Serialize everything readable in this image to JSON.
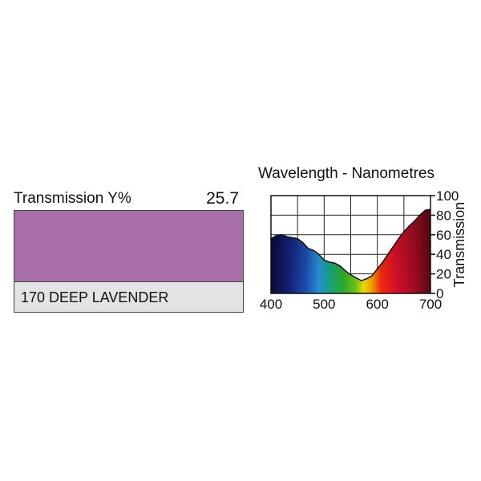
{
  "filter": {
    "transmission_label": "Transmission Y%",
    "transmission_value": "25.7",
    "name": "170 DEEP LAVENDER",
    "swatch_color": "#a86ea8"
  },
  "chart_data": {
    "type": "area",
    "title": "Wavelength - Nanometres",
    "xlabel": "",
    "ylabel": "Transmission",
    "xlim": [
      400,
      700
    ],
    "ylim": [
      0,
      100
    ],
    "x_ticks": [
      "400",
      "500",
      "600",
      "700"
    ],
    "y_ticks": [
      "0",
      "20",
      "40",
      "60",
      "80",
      "100"
    ],
    "grid": true,
    "fill": "visible-spectrum",
    "x": [
      400,
      410,
      420,
      430,
      440,
      450,
      460,
      470,
      480,
      490,
      500,
      510,
      520,
      530,
      540,
      550,
      560,
      570,
      580,
      590,
      600,
      610,
      620,
      630,
      640,
      650,
      660,
      670,
      680,
      690,
      700
    ],
    "values": [
      56,
      59,
      60,
      58,
      57,
      56,
      52,
      46,
      44,
      40,
      34,
      32,
      31,
      28,
      23,
      19,
      16,
      13,
      15,
      18,
      25,
      32,
      40,
      48,
      56,
      63,
      69,
      74,
      80,
      85,
      86
    ]
  }
}
